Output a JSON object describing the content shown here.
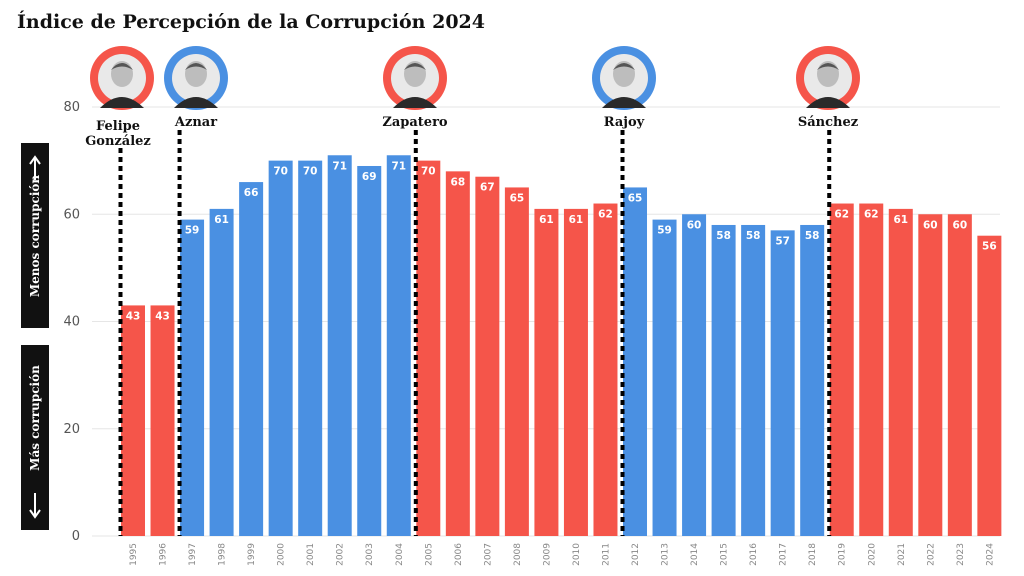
{
  "colors": {
    "psoe": "#f5554a",
    "pp": "#4a90e2",
    "grid": "#e6e6e6",
    "side_box": "#111111"
  },
  "side_labels": {
    "top": "Menos corrupción",
    "bottom": "Más corrupción"
  },
  "chart_data": {
    "type": "bar",
    "title": "Índice de Percepción de la Corrupción 2024",
    "xlabel": "",
    "ylabel": "",
    "ylim": [
      0,
      80
    ],
    "yticks": [
      0,
      20,
      40,
      60,
      80
    ],
    "grid": true,
    "categories": [
      "1995",
      "1996",
      "1997",
      "1998",
      "1999",
      "2000",
      "2001",
      "2002",
      "2003",
      "2004",
      "2005",
      "2006",
      "2007",
      "2008",
      "2009",
      "2010",
      "2011",
      "2012",
      "2013",
      "2014",
      "2015",
      "2016",
      "2017",
      "2018",
      "2019",
      "2020",
      "2021",
      "2022",
      "2023",
      "2024"
    ],
    "values": [
      43,
      43,
      59,
      61,
      66,
      70,
      70,
      71,
      69,
      71,
      70,
      68,
      67,
      65,
      61,
      61,
      62,
      65,
      59,
      60,
      58,
      58,
      57,
      58,
      62,
      62,
      61,
      60,
      60,
      56
    ],
    "parties": [
      "psoe",
      "psoe",
      "pp",
      "pp",
      "pp",
      "pp",
      "pp",
      "pp",
      "pp",
      "pp",
      "psoe",
      "psoe",
      "psoe",
      "psoe",
      "psoe",
      "psoe",
      "psoe",
      "pp",
      "pp",
      "pp",
      "pp",
      "pp",
      "pp",
      "pp",
      "psoe",
      "psoe",
      "psoe",
      "psoe",
      "psoe",
      "psoe"
    ],
    "leaders": [
      {
        "name": "Felipe González",
        "party": "psoe",
        "start_year": "1995"
      },
      {
        "name": "Aznar",
        "party": "pp",
        "start_year": "1997"
      },
      {
        "name": "Zapatero",
        "party": "psoe",
        "start_year": "2005"
      },
      {
        "name": "Rajoy",
        "party": "pp",
        "start_year": "2012"
      },
      {
        "name": "Sánchez",
        "party": "psoe",
        "start_year": "2019"
      }
    ]
  }
}
